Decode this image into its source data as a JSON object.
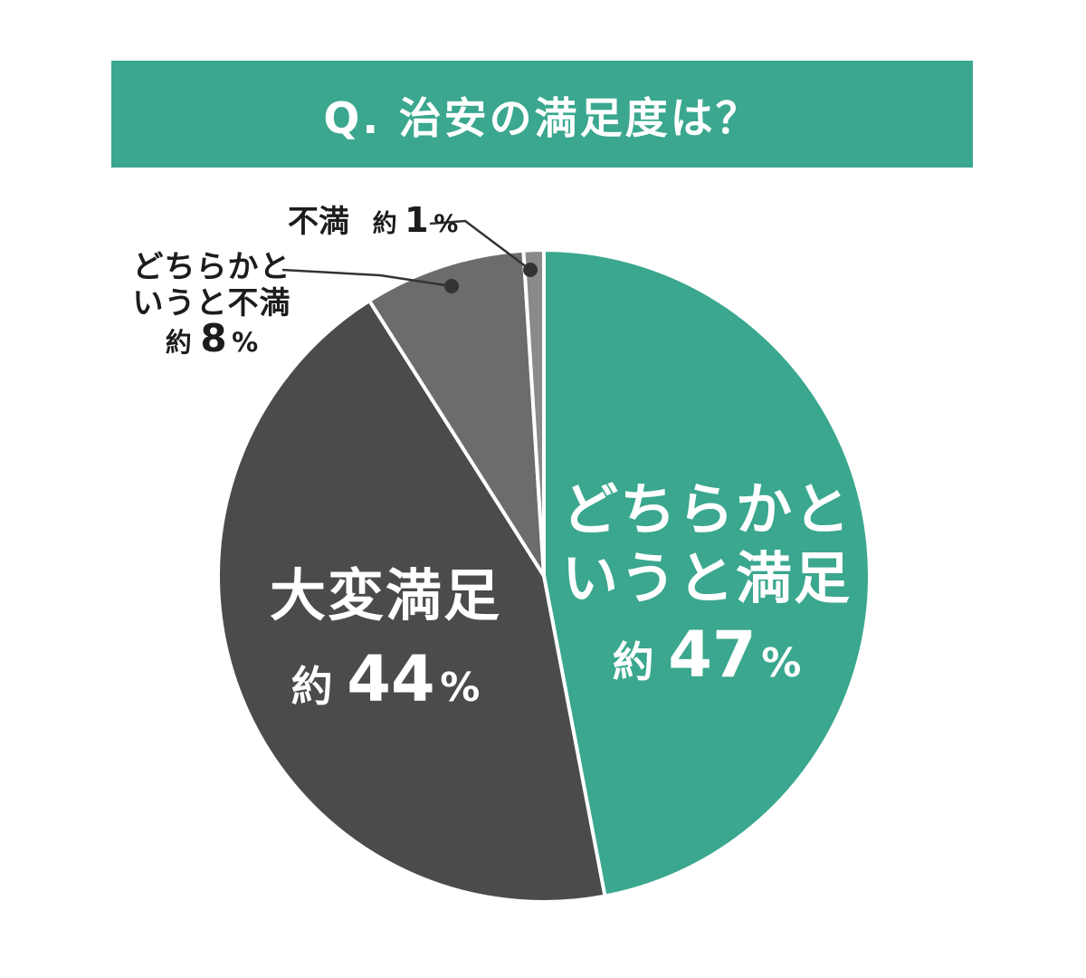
{
  "title": {
    "text": "Q. 治安の満足度は？"
  },
  "colors": {
    "background": "#FFFFFF",
    "banner_bg": "#3AA78E",
    "banner_text": "#FFFFFF",
    "slice_separator": "#FFFFFF",
    "teal": "#3AA78E",
    "dark_gray": "#4B4B4B",
    "medium_gray": "#6C6C6C",
    "light_gray": "#8A8A8A",
    "leader": "#333333",
    "outside_label_text": "#1C1C1C",
    "inside_label_text": "#FFFFFF"
  },
  "chart_data": {
    "type": "pie",
    "title": "Q. 治安の満足度は？",
    "direction": "clockwise",
    "start_angle_deg": 0,
    "donut": false,
    "legend_position": "none",
    "value_unit": "percent",
    "slices": [
      {
        "label": "どちらかというと満足",
        "label_lines": [
          "どちらかと",
          "いうと満足"
        ],
        "approx_prefix": "約",
        "value": 47,
        "value_text": "47",
        "unit": "%",
        "display": "約47%",
        "color": "#3AA78E",
        "label_placement": "inside"
      },
      {
        "label": "大変満足",
        "label_lines": [
          "大変満足"
        ],
        "approx_prefix": "約",
        "value": 44,
        "value_text": "44",
        "unit": "%",
        "display": "約44%",
        "color": "#4B4B4B",
        "label_placement": "inside"
      },
      {
        "label": "どちらかというと不満",
        "label_lines": [
          "どちらかと",
          "いうと不満"
        ],
        "approx_prefix": "約",
        "value": 8,
        "value_text": "8",
        "unit": "%",
        "display": "約8%",
        "color": "#6C6C6C",
        "label_placement": "outside-left"
      },
      {
        "label": "不満",
        "label_lines": [
          "不満"
        ],
        "approx_prefix": "約",
        "value": 1,
        "value_text": "1",
        "unit": "%",
        "display": "約1%",
        "color": "#8A8A8A",
        "label_placement": "outside-top"
      }
    ]
  }
}
